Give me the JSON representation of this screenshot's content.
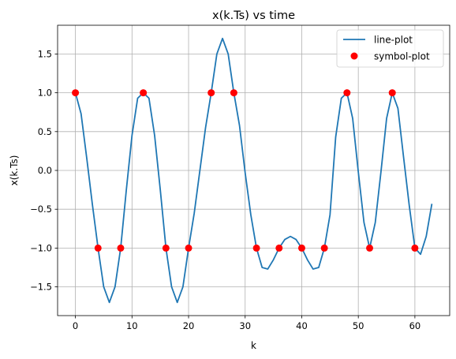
{
  "chart_data": {
    "type": "line",
    "title": "x(k.Ts) vs time",
    "xlabel": "k",
    "ylabel": "x(k.Ts)",
    "xlim": [
      -3.15,
      66.15
    ],
    "ylim": [
      -1.87,
      1.87
    ],
    "grid": true,
    "legend_position": "top-right",
    "x_ticks": [
      0,
      10,
      20,
      30,
      40,
      50,
      60
    ],
    "x_tick_labels": [
      "0",
      "10",
      "20",
      "30",
      "40",
      "50",
      "60"
    ],
    "y_ticks": [
      -1.5,
      -1.0,
      -0.5,
      0.0,
      0.5,
      1.0,
      1.5
    ],
    "y_tick_labels": [
      "−1.5",
      "−1.0",
      "−0.5",
      "0.0",
      "0.5",
      "1.0",
      "1.5"
    ],
    "series": [
      {
        "name": "line-plot",
        "kind": "line",
        "color": "#1f77b4",
        "x": [
          0,
          1,
          2,
          3,
          4,
          5,
          6,
          7,
          8,
          9,
          10,
          11,
          12,
          13,
          14,
          15,
          16,
          17,
          18,
          19,
          20,
          21,
          22,
          23,
          24,
          25,
          26,
          27,
          28,
          29,
          30,
          31,
          32,
          33,
          34,
          35,
          36,
          37,
          38,
          39,
          40,
          41,
          42,
          43,
          44,
          45,
          46,
          47,
          48,
          49,
          50,
          51,
          52,
          53,
          54,
          55,
          56,
          57,
          58,
          59,
          60,
          61,
          62,
          63
        ],
        "y": [
          1.0,
          0.73,
          0.16,
          -0.44,
          -1.0,
          -1.5,
          -1.7,
          -1.5,
          -1.0,
          -0.25,
          0.45,
          0.93,
          1.0,
          0.93,
          0.45,
          -0.25,
          -1.0,
          -1.5,
          -1.7,
          -1.5,
          -1.0,
          -0.55,
          0.0,
          0.55,
          1.0,
          1.5,
          1.7,
          1.5,
          1.0,
          0.58,
          -0.03,
          -0.57,
          -1.0,
          -1.25,
          -1.27,
          -1.15,
          -1.0,
          -0.89,
          -0.85,
          -0.89,
          -1.0,
          -1.15,
          -1.27,
          -1.25,
          -1.0,
          -0.57,
          0.43,
          0.93,
          1.0,
          0.67,
          -0.02,
          -0.67,
          -1.0,
          -0.67,
          -0.02,
          0.67,
          1.0,
          0.8,
          0.17,
          -0.45,
          -1.0,
          -1.08,
          -0.85,
          -0.43
        ]
      },
      {
        "name": "symbol-plot",
        "kind": "scatter",
        "color": "#ff0000",
        "x": [
          0,
          4,
          8,
          12,
          16,
          20,
          24,
          28,
          32,
          36,
          40,
          44,
          48,
          52,
          56,
          60
        ],
        "y": [
          1,
          -1,
          -1,
          1,
          -1,
          -1,
          1,
          1,
          -1,
          -1,
          -1,
          -1,
          1,
          -1,
          1,
          -1
        ]
      }
    ]
  }
}
